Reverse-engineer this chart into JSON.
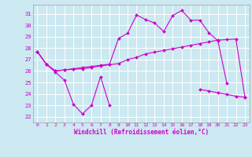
{
  "xlabel": "Windchill (Refroidissement éolien,°C)",
  "bg_color": "#cce8f0",
  "line_color": "#cc00cc",
  "grid_color": "#ffffff",
  "border_color": "#aaaaaa",
  "xlim": [
    -0.5,
    23.5
  ],
  "ylim": [
    21.5,
    31.8
  ],
  "yticks": [
    22,
    23,
    24,
    25,
    26,
    27,
    28,
    29,
    30,
    31
  ],
  "xticks": [
    0,
    1,
    2,
    3,
    4,
    5,
    6,
    7,
    8,
    9,
    10,
    11,
    12,
    13,
    14,
    15,
    16,
    17,
    18,
    19,
    20,
    21,
    22,
    23
  ],
  "series1_x": [
    0,
    1,
    2,
    3,
    4,
    5,
    6,
    7,
    8
  ],
  "series1_y": [
    27.7,
    26.6,
    25.9,
    25.2,
    23.1,
    22.25,
    23.0,
    25.5,
    23.0
  ],
  "series2_x": [
    0,
    1,
    2,
    3,
    4,
    5,
    6,
    7,
    8,
    9,
    10,
    11,
    12,
    13,
    14,
    15,
    16,
    17,
    18,
    19,
    20,
    21,
    22,
    23
  ],
  "series2_y": [
    27.7,
    26.6,
    26.0,
    26.1,
    26.15,
    26.2,
    26.3,
    26.45,
    26.55,
    26.65,
    27.0,
    27.2,
    27.5,
    27.65,
    27.8,
    27.95,
    28.1,
    28.25,
    28.4,
    28.55,
    28.7,
    28.75,
    28.8,
    23.7
  ],
  "series3_x": [
    0,
    1,
    2,
    3,
    4,
    5,
    6,
    7,
    8,
    9,
    10,
    11,
    12,
    13,
    14,
    15,
    16,
    17,
    18,
    19,
    20,
    21
  ],
  "series3_y": [
    27.7,
    26.6,
    26.0,
    26.1,
    26.2,
    26.3,
    26.4,
    26.5,
    26.6,
    28.85,
    29.3,
    30.9,
    30.5,
    30.2,
    29.45,
    30.85,
    31.3,
    30.45,
    30.45,
    29.35,
    28.65,
    24.9
  ],
  "series4_x": [
    18,
    19,
    20,
    21,
    22,
    23
  ],
  "series4_y": [
    24.4,
    24.25,
    24.1,
    23.95,
    23.8,
    23.7
  ]
}
